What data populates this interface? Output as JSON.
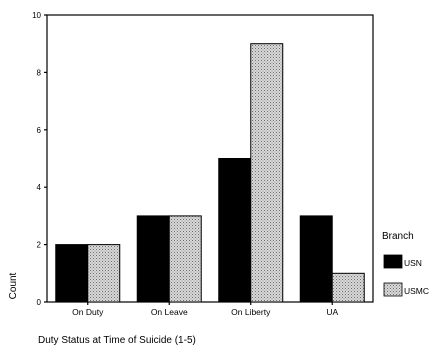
{
  "chart_data": {
    "type": "bar",
    "categories": [
      "On Duty",
      "On Leave",
      "On Liberty",
      "UA"
    ],
    "series": [
      {
        "name": "USN",
        "values": [
          2,
          3,
          5,
          3
        ],
        "color": "#000000",
        "pattern": "solid"
      },
      {
        "name": "USMC",
        "values": [
          2,
          3,
          9,
          1
        ],
        "color": "#bdbdbd",
        "pattern": "stipple"
      }
    ],
    "title": "",
    "xlabel": "Duty Status at Time of Suicide (1-5)",
    "ylabel": "Count",
    "ylim": [
      0,
      10
    ],
    "yticks": [
      "0",
      "2",
      "4",
      "6",
      "8",
      "10"
    ],
    "legend": {
      "title": "Branch",
      "placement": "right"
    },
    "grid": false
  }
}
